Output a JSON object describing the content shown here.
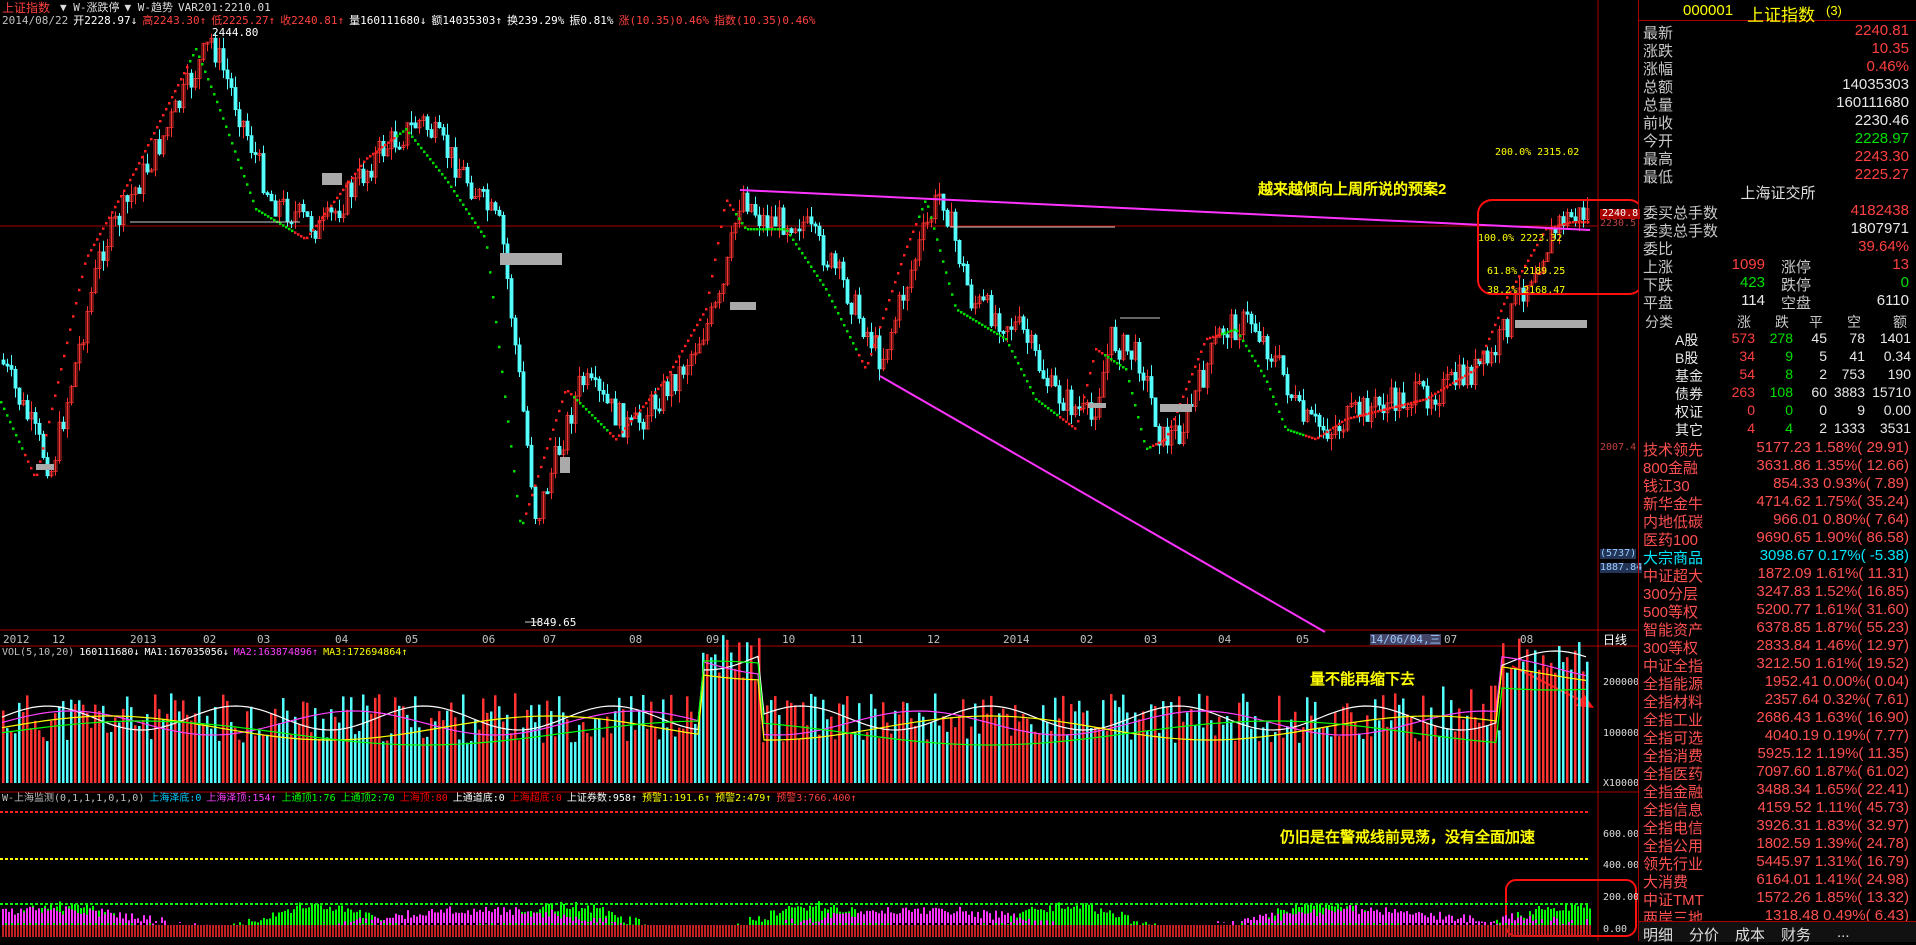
{
  "header": {
    "title": "上证指数",
    "tags": [
      "W-涨跌停",
      "W-趋势",
      "VAR201:2210.01"
    ],
    "info": [
      {
        "t": "2014/08/22",
        "c": "#c0c0c0"
      },
      {
        "t": "开2228.97↓",
        "c": "#fff"
      },
      {
        "t": "高2243.30↑",
        "c": "#ff4040"
      },
      {
        "t": "低2225.27↑",
        "c": "#ff4040"
      },
      {
        "t": "收2240.81↑",
        "c": "#ff4040"
      },
      {
        "t": "量160111680↓",
        "c": "#fff"
      },
      {
        "t": "额14035303↑",
        "c": "#fff"
      },
      {
        "t": "换239.29%",
        "c": "#fff"
      },
      {
        "t": "振0.81%",
        "c": "#fff"
      },
      {
        "t": "涨(10.35)0.46%",
        "c": "#ff4040"
      },
      {
        "t": "指数(10.35)0.46%",
        "c": "#ff4040"
      }
    ]
  },
  "main_chart": {
    "high_label": "2444.80",
    "low_label": "1849.65",
    "fib": [
      {
        "t": "200.0% 2315.02",
        "c": "#ffff00"
      },
      {
        "t": "100.0% 2223.32",
        "c": "#ffff00"
      },
      {
        "t": "61.8% 2189.25",
        "c": "#ffff00"
      },
      {
        "t": "38.2% 2168.47",
        "c": "#ffff00"
      }
    ],
    "right_axis": [
      "2230.5",
      "2007.4",
      "1887.84"
    ],
    "price_tag": "2240.8",
    "axis_box": "(5737)",
    "annotation": "越来越倾向上周所说的预案2",
    "x_ticks": [
      "2012",
      "12",
      "2013",
      "02",
      "03",
      "04",
      "05",
      "06",
      "07",
      "08",
      "09",
      "10",
      "11",
      "12",
      "2014",
      "02",
      "03",
      "04",
      "05",
      "14/06/04,三",
      "07",
      "08"
    ],
    "period": "日线"
  },
  "vol_chart": {
    "title_items": [
      {
        "t": "VOL(5,10,20)",
        "c": "#c0c0c0"
      },
      {
        "t": "160111680↓",
        "c": "#fff"
      },
      {
        "t": "MA1:167035056↓",
        "c": "#fff"
      },
      {
        "t": "MA2:163874896↑",
        "c": "#ff40ff"
      },
      {
        "t": "MA3:172694864↑",
        "c": "#ffff00"
      }
    ],
    "axis": [
      "200000",
      "100000",
      "X10000"
    ],
    "annotation": "量不能再缩下去"
  },
  "mon_chart": {
    "title_items": [
      {
        "t": "W-上海监测(0,1,1,1,0,1,0)",
        "c": "#c0c0c0"
      },
      {
        "t": "上海泽底:0",
        "c": "#00ccff"
      },
      {
        "t": "上海泽顶:154↑",
        "c": "#ff40ff"
      },
      {
        "t": "上通顶1:76",
        "c": "#00ff00"
      },
      {
        "t": "上通顶2:70",
        "c": "#00ff00"
      },
      {
        "t": "上海顶:80",
        "c": "#ff0000"
      },
      {
        "t": "上通道底:0",
        "c": "#fff"
      },
      {
        "t": "上海超底:0",
        "c": "#ff0000"
      },
      {
        "t": "上证券数:958↑",
        "c": "#fff"
      },
      {
        "t": "预警1:191.6↑",
        "c": "#ffff00"
      },
      {
        "t": "预警2:479↑",
        "c": "#ffff00"
      },
      {
        "t": "预警3:766.400↑",
        "c": "#ff4040"
      }
    ],
    "axis": [
      "600.00",
      "400.00",
      "200.00",
      "0.00"
    ],
    "annotation": "仍旧是在警戒线前晃荡，没有全面加速"
  },
  "side": {
    "code": "000001",
    "name": "上证指数",
    "count": "(3)",
    "quotes": [
      {
        "l": "最新",
        "v": "2240.81",
        "c": "#ff4040"
      },
      {
        "l": "涨跌",
        "v": "10.35",
        "c": "#ff4040"
      },
      {
        "l": "涨幅",
        "v": "0.46%",
        "c": "#ff4040"
      },
      {
        "l": "总额",
        "v": "14035303",
        "c": "#e8e8e8"
      },
      {
        "l": "总量",
        "v": "160111680",
        "c": "#e8e8e8"
      },
      {
        "l": "前收",
        "v": "2230.46",
        "c": "#e8e8e8"
      },
      {
        "l": "今开",
        "v": "2228.97",
        "c": "#00e000"
      },
      {
        "l": "最高",
        "v": "2243.30",
        "c": "#ff4040"
      },
      {
        "l": "最低",
        "v": "2225.27",
        "c": "#ff4040"
      }
    ],
    "exchange": "上海证交所",
    "orders": [
      {
        "l": "委买总手数",
        "v": "4182438",
        "c": "#ff4040"
      },
      {
        "l": "委卖总手数",
        "v": "1807971",
        "c": "#e8e8e8"
      },
      {
        "l": "委比",
        "v": "39.64%",
        "c": "#ff4040"
      }
    ],
    "breadth": [
      {
        "l1": "上涨",
        "v1": "1099",
        "c1": "#ff4040",
        "l2": "涨停",
        "v2": "13",
        "c2": "#ff4040"
      },
      {
        "l1": "下跌",
        "v1": "423",
        "c1": "#00e000",
        "l2": "跌停",
        "v2": "0",
        "c2": "#00e000"
      },
      {
        "l1": "平盘",
        "v1": "114",
        "c1": "#e8e8e8",
        "l2": "空盘",
        "v2": "6110",
        "c2": "#e8e8e8"
      }
    ],
    "class_header": [
      "分类",
      "涨",
      "跌",
      "平",
      "空",
      "额"
    ],
    "classes": [
      [
        "A股",
        "573",
        "278",
        "45",
        "78",
        "1401"
      ],
      [
        "B股",
        "34",
        "9",
        "5",
        "41",
        "0.34"
      ],
      [
        "基金",
        "54",
        "8",
        "2",
        "753",
        "190"
      ],
      [
        "债券",
        "263",
        "108",
        "60",
        "3883",
        "15710"
      ],
      [
        "权证",
        "0",
        "0",
        "0",
        "9",
        "0.00"
      ],
      [
        "其它",
        "4",
        "4",
        "2",
        "1333",
        "3531"
      ]
    ],
    "indices": [
      {
        "n": "技术领先",
        "v": "5177.23 1.58%( 29.91)",
        "c": "#ff5050"
      },
      {
        "n": "800金融",
        "v": "3631.86 1.35%( 12.66)",
        "c": "#ff5050"
      },
      {
        "n": "钱江30",
        "v": "854.33 0.93%( 7.89)",
        "c": "#ff5050"
      },
      {
        "n": "新华金牛",
        "v": "4714.62 1.75%( 35.24)",
        "c": "#ff5050"
      },
      {
        "n": "内地低碳",
        "v": "966.01 0.80%( 7.64)",
        "c": "#ff5050"
      },
      {
        "n": "医药100",
        "v": "9690.65 1.90%( 86.58)",
        "c": "#ff5050"
      },
      {
        "n": "大宗商品",
        "v": "3098.67 0.17%( -5.38)",
        "c": "#00e8ff"
      },
      {
        "n": "中证超大",
        "v": "1872.09 1.61%( 11.31)",
        "c": "#ff5050"
      },
      {
        "n": "300分层",
        "v": "3247.83 1.52%( 16.85)",
        "c": "#ff5050"
      },
      {
        "n": "500等权",
        "v": "5200.77 1.61%( 31.60)",
        "c": "#ff5050"
      },
      {
        "n": "智能资产",
        "v": "6378.85 1.87%( 55.23)",
        "c": "#ff5050"
      },
      {
        "n": "300等权",
        "v": "2833.84 1.46%( 12.97)",
        "c": "#ff5050"
      },
      {
        "n": "中证全指",
        "v": "3212.50 1.61%( 19.52)",
        "c": "#ff5050"
      },
      {
        "n": "全指能源",
        "v": "1952.41 0.00%( 0.04)",
        "c": "#ff5050"
      },
      {
        "n": "全指材料",
        "v": "2357.64 0.32%( 7.61)",
        "c": "#ff5050"
      },
      {
        "n": "全指工业",
        "v": "2686.43 1.63%( 16.90)",
        "c": "#ff5050"
      },
      {
        "n": "全指可选",
        "v": "4040.19 0.19%( 7.77)",
        "c": "#ff5050"
      },
      {
        "n": "全指消费",
        "v": "5925.12 1.19%( 11.35)",
        "c": "#ff5050"
      },
      {
        "n": "全指医药",
        "v": "7097.60 1.87%( 61.02)",
        "c": "#ff5050"
      },
      {
        "n": "全指金融",
        "v": "3488.34 1.65%( 22.41)",
        "c": "#ff5050"
      },
      {
        "n": "全指信息",
        "v": "4159.52 1.11%( 45.73)",
        "c": "#ff5050"
      },
      {
        "n": "全指电信",
        "v": "3926.31 1.83%( 32.97)",
        "c": "#ff5050"
      },
      {
        "n": "全指公用",
        "v": "1802.59 1.39%( 24.78)",
        "c": "#ff5050"
      },
      {
        "n": "领先行业",
        "v": "5445.97 1.31%( 16.79)",
        "c": "#ff5050"
      },
      {
        "n": "大消费",
        "v": "6164.01 1.41%( 24.98)",
        "c": "#ff5050"
      },
      {
        "n": "中证TMT",
        "v": "1572.26 1.85%( 13.32)",
        "c": "#ff5050"
      },
      {
        "n": "两岸三地",
        "v": "1318.48 0.49%( 6.43)",
        "c": "#ff5050"
      }
    ],
    "tabs": [
      "明细",
      "分价",
      "成本",
      "财务",
      "..."
    ]
  }
}
